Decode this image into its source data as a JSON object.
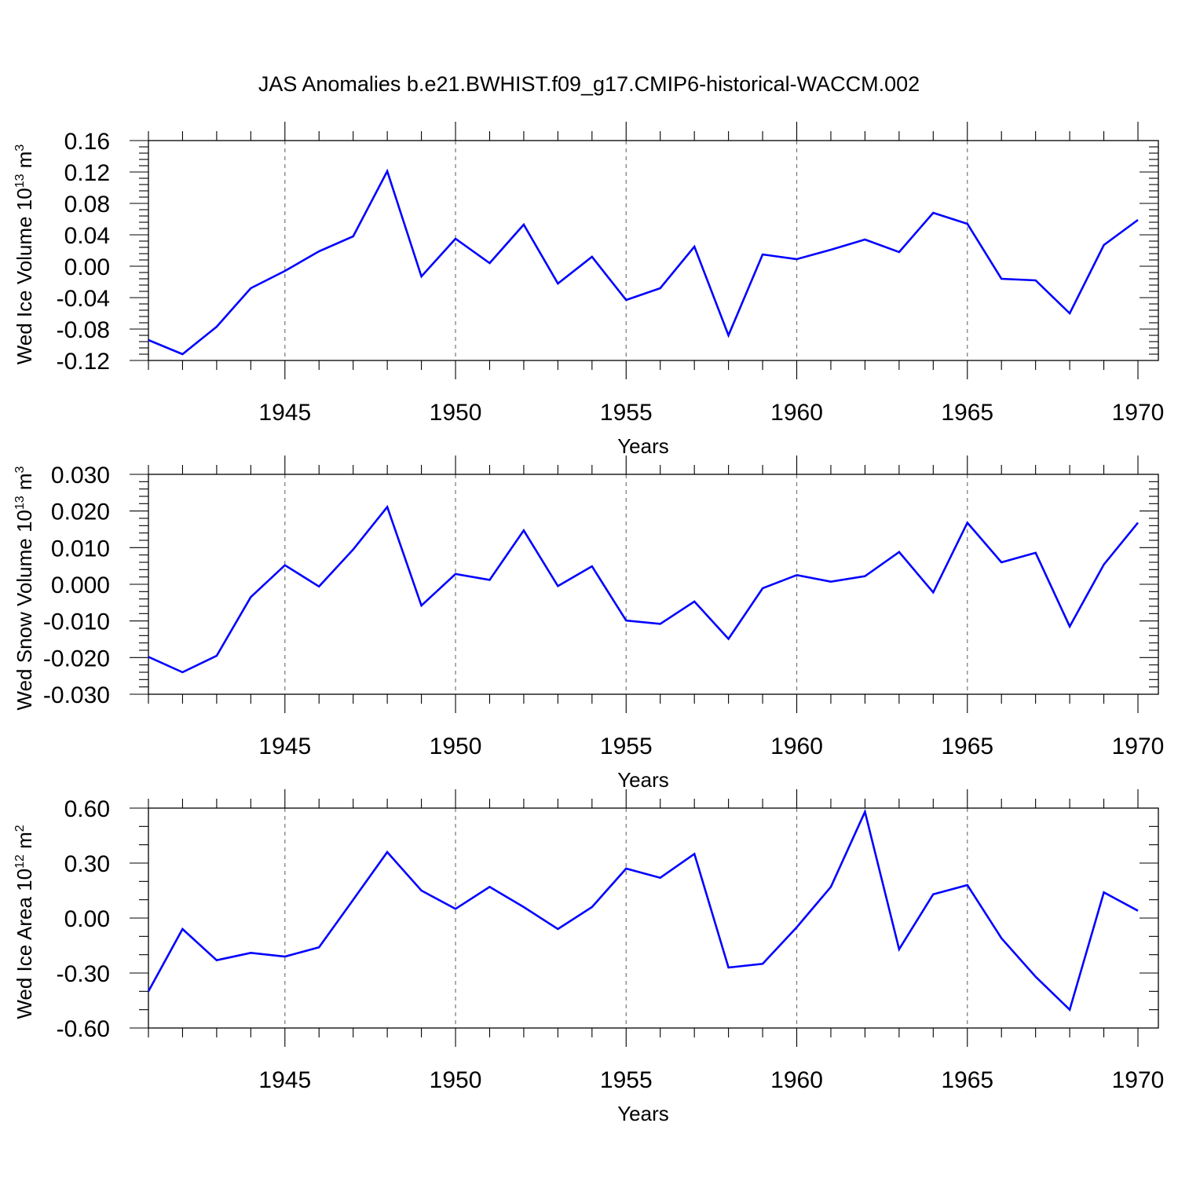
{
  "page_title": "JAS Anomalies b.e21.BWHIST.f09_g17.CMIP6-historical-WACCM.002",
  "colors": {
    "line": "#0000ff",
    "frame": "#000000",
    "grid": "#777777"
  },
  "chart_data": [
    {
      "type": "line",
      "title": "",
      "xlabel": "Years",
      "ylabel": "Wed Ice Volume 10",
      "ylabel_exponent": "13",
      "ylabel_unit": " m",
      "ylabel_unit_exponent": "3",
      "xlim": [
        1941,
        1970
      ],
      "ylim": [
        -0.12,
        0.16
      ],
      "x_major_ticks": [
        1945,
        1950,
        1955,
        1960,
        1965,
        1970
      ],
      "x_tick_labels": [
        "1945",
        "1950",
        "1955",
        "1960",
        "1965",
        "1970"
      ],
      "y_major_ticks": [
        -0.12,
        -0.08,
        -0.04,
        0.0,
        0.04,
        0.08,
        0.12,
        0.16
      ],
      "y_tick_labels": [
        "-0.12",
        "-0.08",
        "-0.04",
        "0.00",
        "0.04",
        "0.08",
        "0.12",
        "0.16"
      ],
      "y_minor_step": 0.008,
      "x_grid": [
        1945,
        1950,
        1955,
        1960,
        1965
      ],
      "series": [
        {
          "name": "Wed Ice Volume",
          "x": [
            1941,
            1942,
            1943,
            1944,
            1945,
            1946,
            1947,
            1948,
            1949,
            1950,
            1951,
            1952,
            1953,
            1954,
            1955,
            1956,
            1957,
            1958,
            1959,
            1960,
            1961,
            1962,
            1963,
            1964,
            1965,
            1966,
            1967,
            1968,
            1969,
            1970
          ],
          "values": [
            -0.094,
            -0.112,
            -0.077,
            -0.028,
            -0.006,
            0.019,
            0.038,
            0.121,
            -0.013,
            0.035,
            0.004,
            0.053,
            -0.022,
            0.012,
            -0.043,
            -0.028,
            0.025,
            -0.088,
            0.015,
            0.009,
            0.021,
            0.034,
            0.018,
            0.068,
            0.054,
            -0.016,
            -0.018,
            -0.06,
            0.027,
            0.059
          ]
        }
      ]
    },
    {
      "type": "line",
      "title": "",
      "xlabel": "Years",
      "ylabel": "Wed Snow Volume 10",
      "ylabel_exponent": "13",
      "ylabel_unit": " m",
      "ylabel_unit_exponent": "3",
      "xlim": [
        1941,
        1970
      ],
      "ylim": [
        -0.03,
        0.03
      ],
      "x_major_ticks": [
        1945,
        1950,
        1955,
        1960,
        1965,
        1970
      ],
      "x_tick_labels": [
        "1945",
        "1950",
        "1955",
        "1960",
        "1965",
        "1970"
      ],
      "y_major_ticks": [
        -0.03,
        -0.02,
        -0.01,
        0.0,
        0.01,
        0.02,
        0.03
      ],
      "y_tick_labels": [
        "-0.030",
        "-0.020",
        "-0.010",
        "0.000",
        "0.010",
        "0.020",
        "0.030"
      ],
      "y_minor_step": 0.002,
      "x_grid": [
        1945,
        1950,
        1955,
        1960,
        1965
      ],
      "series": [
        {
          "name": "Wed Snow Volume",
          "x": [
            1941,
            1942,
            1943,
            1944,
            1945,
            1946,
            1947,
            1948,
            1949,
            1950,
            1951,
            1952,
            1953,
            1954,
            1955,
            1956,
            1957,
            1958,
            1959,
            1960,
            1961,
            1962,
            1963,
            1964,
            1965,
            1966,
            1967,
            1968,
            1969,
            1970
          ],
          "values": [
            -0.0198,
            -0.024,
            -0.0195,
            -0.0035,
            0.0052,
            -0.0006,
            0.0095,
            0.0211,
            -0.0058,
            0.0028,
            0.0012,
            0.0147,
            -0.0005,
            0.0049,
            -0.0099,
            -0.0108,
            -0.0047,
            -0.0149,
            -0.0011,
            0.0025,
            0.0007,
            0.0022,
            0.0088,
            -0.0022,
            0.0168,
            0.006,
            0.0086,
            -0.0115,
            0.0054,
            0.0168
          ]
        }
      ]
    },
    {
      "type": "line",
      "title": "",
      "xlabel": "Years",
      "ylabel": "Wed Ice Area 10",
      "ylabel_exponent": "12",
      "ylabel_unit": " m",
      "ylabel_unit_exponent": "2",
      "xlim": [
        1941,
        1970
      ],
      "ylim": [
        -0.6,
        0.6
      ],
      "x_major_ticks": [
        1945,
        1950,
        1955,
        1960,
        1965,
        1970
      ],
      "x_tick_labels": [
        "1945",
        "1950",
        "1955",
        "1960",
        "1965",
        "1970"
      ],
      "y_major_ticks": [
        -0.6,
        -0.3,
        0.0,
        0.3,
        0.6
      ],
      "y_tick_labels": [
        "-0.60",
        "-0.30",
        "0.00",
        "0.30",
        "0.60"
      ],
      "y_minor_step": 0.1,
      "x_grid": [
        1945,
        1950,
        1955,
        1960,
        1965
      ],
      "series": [
        {
          "name": "Wed Ice Area",
          "x": [
            1941,
            1942,
            1943,
            1944,
            1945,
            1946,
            1947,
            1948,
            1949,
            1950,
            1951,
            1952,
            1953,
            1954,
            1955,
            1956,
            1957,
            1958,
            1959,
            1960,
            1961,
            1962,
            1963,
            1964,
            1965,
            1966,
            1967,
            1968,
            1969,
            1970
          ],
          "values": [
            -0.4,
            -0.06,
            -0.23,
            -0.19,
            -0.21,
            -0.16,
            0.1,
            0.36,
            0.15,
            0.05,
            0.17,
            0.06,
            -0.06,
            0.06,
            0.27,
            0.22,
            0.35,
            -0.27,
            -0.25,
            -0.05,
            0.17,
            0.58,
            -0.17,
            0.13,
            0.18,
            -0.11,
            -0.32,
            -0.5,
            0.14,
            0.04
          ]
        }
      ]
    }
  ]
}
